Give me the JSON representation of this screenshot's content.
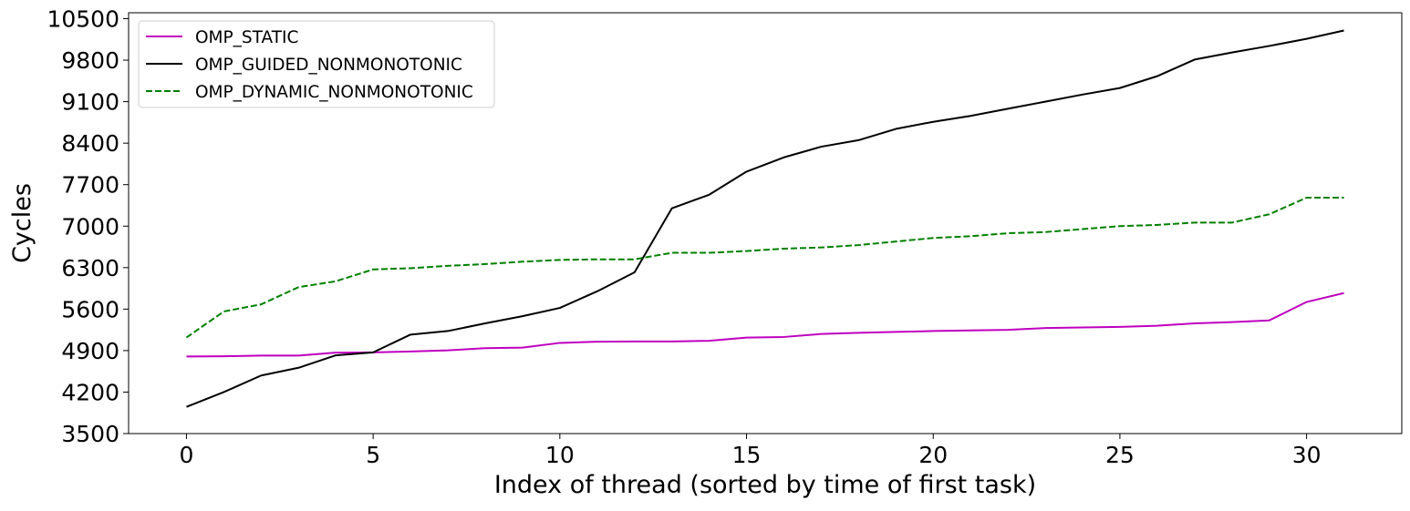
{
  "chart_data": {
    "type": "line",
    "title": "",
    "xlabel": "Index of thread (sorted by time of first task)",
    "ylabel": "Cycles",
    "xlim": [
      -1.55,
      32.55
    ],
    "ylim": [
      3500,
      10600
    ],
    "xticks": [
      0,
      5,
      10,
      15,
      20,
      25,
      30
    ],
    "yticks": [
      3500,
      4200,
      4900,
      5600,
      6300,
      7000,
      7700,
      8400,
      9100,
      9800,
      10500
    ],
    "grid": false,
    "legend_position": "top-left",
    "x": [
      0,
      1,
      2,
      3,
      4,
      5,
      6,
      7,
      8,
      9,
      10,
      11,
      12,
      13,
      14,
      15,
      16,
      17,
      18,
      19,
      20,
      21,
      22,
      23,
      24,
      25,
      26,
      27,
      28,
      29,
      30,
      31
    ],
    "series": [
      {
        "name": "OMP_STATIC",
        "color": "#bf00bf",
        "linestyle": "solid",
        "values": [
          4800,
          4805,
          4815,
          4815,
          4865,
          4870,
          4885,
          4905,
          4940,
          4950,
          5030,
          5050,
          5055,
          5055,
          5065,
          5120,
          5130,
          5180,
          5200,
          5215,
          5230,
          5240,
          5250,
          5280,
          5290,
          5300,
          5320,
          5360,
          5380,
          5410,
          5720,
          5870
        ]
      },
      {
        "name": "OMP_GUIDED_NONMONOTONIC",
        "color": "#000000",
        "linestyle": "solid",
        "values": [
          3950,
          4200,
          4480,
          4610,
          4820,
          4870,
          5170,
          5230,
          5360,
          5480,
          5620,
          5900,
          6220,
          7300,
          7530,
          7920,
          8160,
          8340,
          8450,
          8640,
          8760,
          8860,
          8980,
          9100,
          9220,
          9330,
          9530,
          9810,
          9930,
          10040,
          10160,
          10300
        ]
      },
      {
        "name": "OMP_DYNAMIC_NONMONOTONIC",
        "color": "#008000",
        "linestyle": "dashed",
        "values": [
          5120,
          5560,
          5680,
          5970,
          6070,
          6270,
          6290,
          6330,
          6360,
          6400,
          6430,
          6440,
          6440,
          6550,
          6550,
          6580,
          6620,
          6640,
          6680,
          6740,
          6800,
          6830,
          6880,
          6900,
          6950,
          7000,
          7020,
          7060,
          7060,
          7200,
          7480,
          7480
        ]
      }
    ]
  }
}
